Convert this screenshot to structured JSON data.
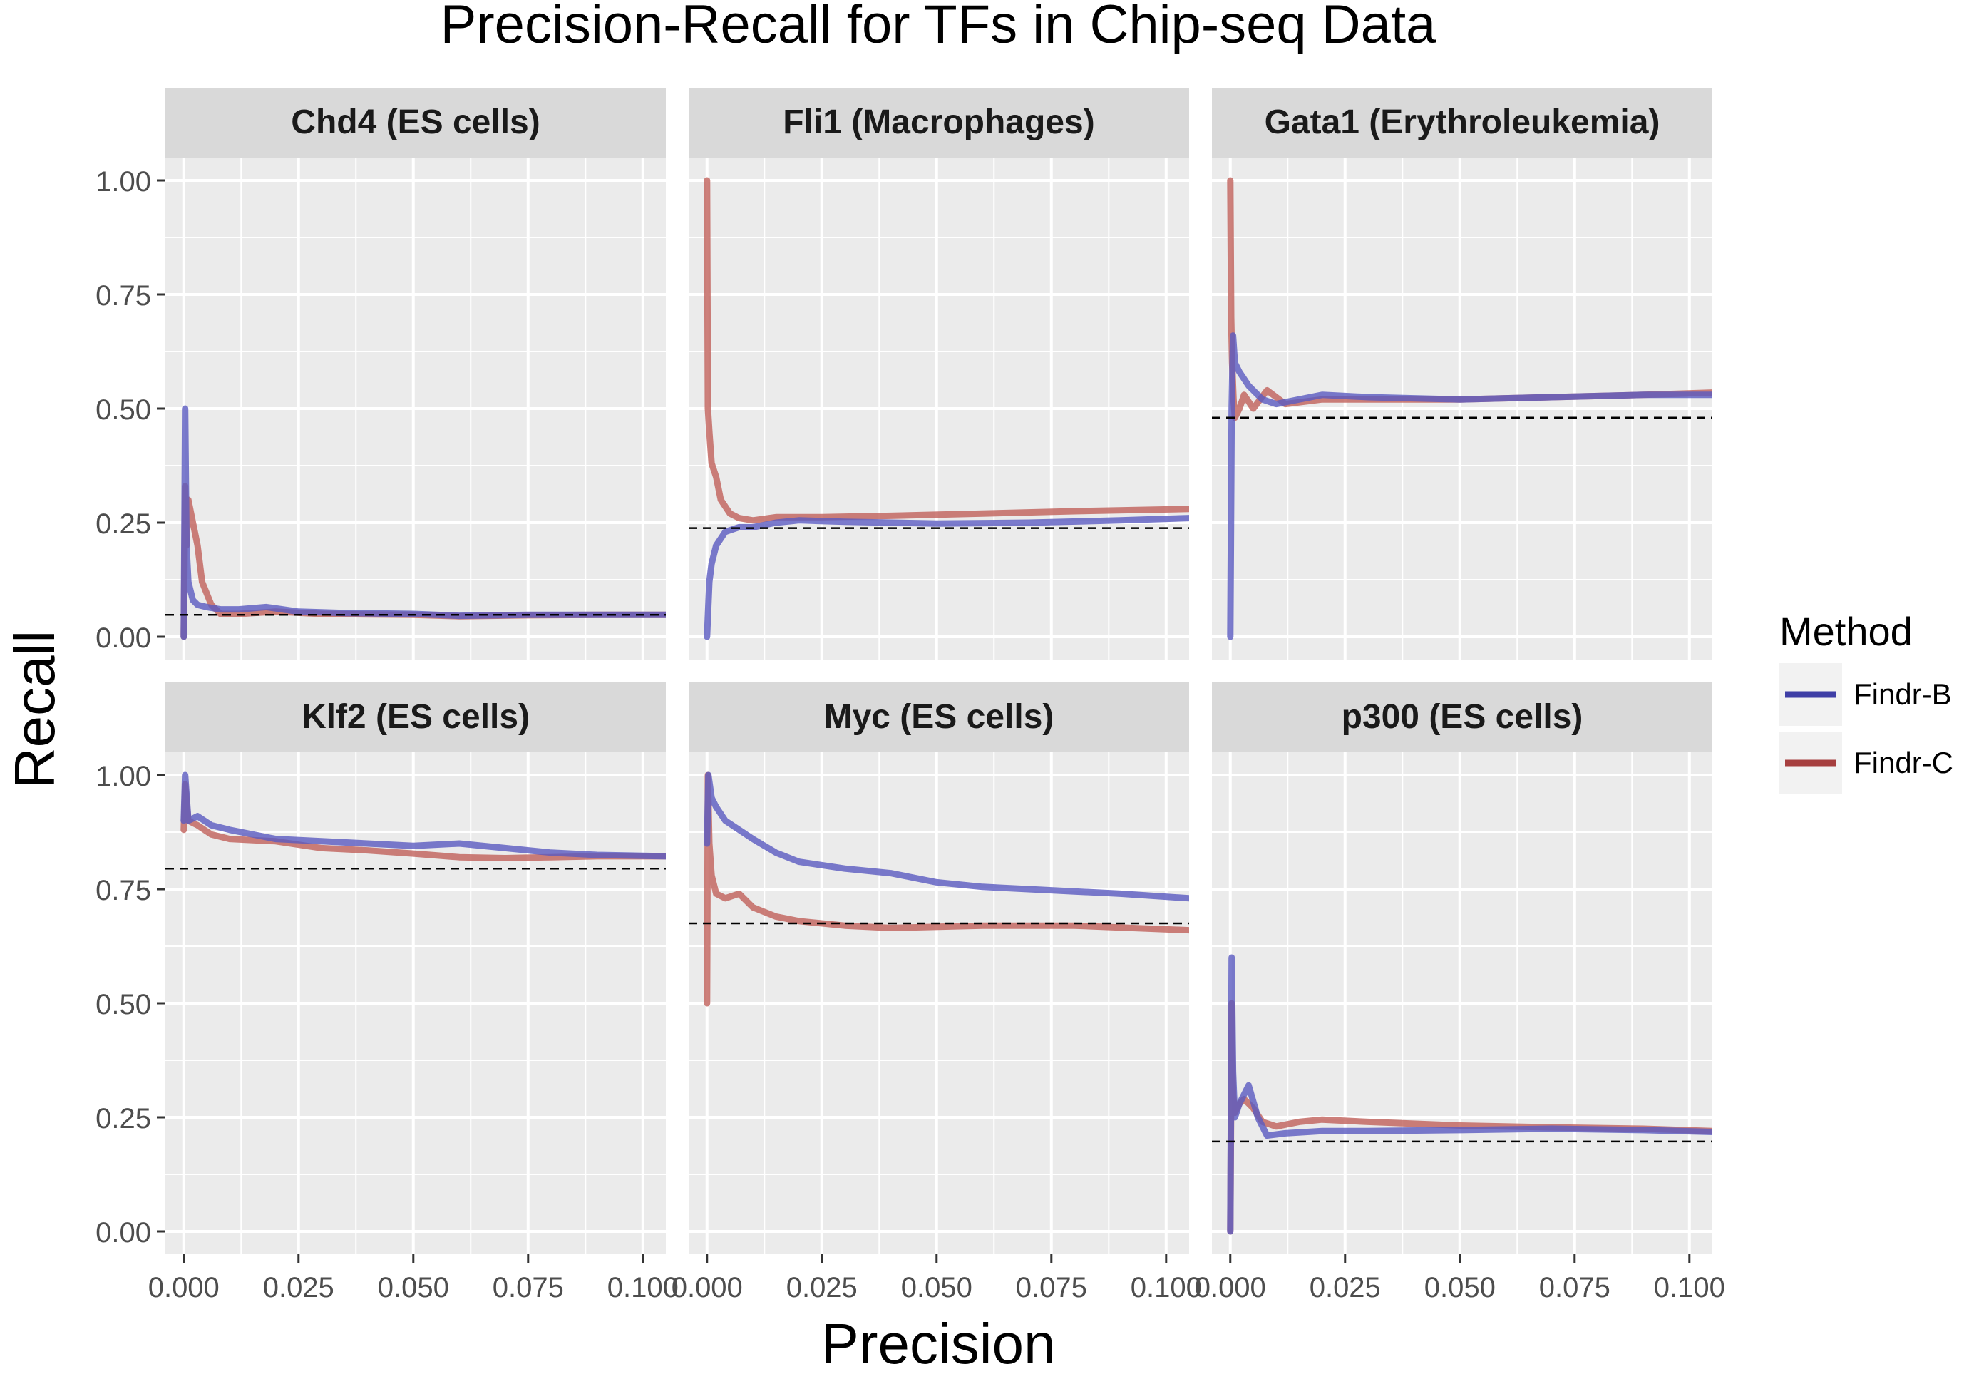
{
  "chart_data": {
    "type": "line",
    "title": "Precision-Recall for TFs in Chip-seq Data",
    "xlabel": "Precision",
    "ylabel": "Recall",
    "xlim": [
      -0.004,
      0.105
    ],
    "ylim": [
      -0.05,
      1.05
    ],
    "xticks": [
      0.0,
      0.025,
      0.05,
      0.075,
      0.1
    ],
    "xtick_labels": [
      "0.000",
      "0.025",
      "0.050",
      "0.075",
      "0.100"
    ],
    "yticks": [
      0.0,
      0.25,
      0.5,
      0.75,
      1.0
    ],
    "ytick_labels": [
      "0.00",
      "0.25",
      "0.50",
      "0.75",
      "1.00"
    ],
    "legend": {
      "title": "Method",
      "position": "right",
      "entries": [
        {
          "name": "Findr-B",
          "color": "#3f3fa6"
        },
        {
          "name": "Findr-C",
          "color": "#a63f3f"
        }
      ]
    },
    "colors": {
      "findr_b": "#5a5ac0",
      "findr_c": "#c0605a",
      "panel_bg": "#ebebeb",
      "strip_bg": "#d9d9d9",
      "grid": "#ffffff",
      "baseline": "#000000"
    },
    "panels": [
      {
        "title": "Chd4 (ES cells)",
        "baseline": 0.048,
        "series": [
          {
            "name": "Findr-B",
            "x": [
              0.0,
              0.0003,
              0.0006,
              0.001,
              0.002,
              0.003,
              0.005,
              0.008,
              0.012,
              0.018,
              0.025,
              0.035,
              0.05,
              0.06,
              0.075,
              0.09,
              0.105
            ],
            "y": [
              0.0,
              0.5,
              0.2,
              0.12,
              0.08,
              0.07,
              0.065,
              0.06,
              0.06,
              0.065,
              0.055,
              0.052,
              0.05,
              0.046,
              0.048,
              0.048,
              0.048
            ]
          },
          {
            "name": "Findr-C",
            "x": [
              0.0,
              0.0003,
              0.0006,
              0.001,
              0.002,
              0.003,
              0.004,
              0.006,
              0.008,
              0.012,
              0.02,
              0.03,
              0.05,
              0.06,
              0.075,
              0.09,
              0.105
            ],
            "y": [
              0.0,
              0.33,
              0.2,
              0.3,
              0.25,
              0.2,
              0.12,
              0.07,
              0.05,
              0.05,
              0.055,
              0.05,
              0.048,
              0.045,
              0.047,
              0.048,
              0.048
            ]
          }
        ]
      },
      {
        "title": "Fli1 (Macrophages)",
        "baseline": 0.238,
        "series": [
          {
            "name": "Findr-B",
            "x": [
              0.0,
              0.0005,
              0.001,
              0.002,
              0.004,
              0.007,
              0.01,
              0.015,
              0.02,
              0.03,
              0.05,
              0.07,
              0.09,
              0.105
            ],
            "y": [
              0.0,
              0.12,
              0.16,
              0.2,
              0.23,
              0.24,
              0.24,
              0.25,
              0.255,
              0.252,
              0.248,
              0.25,
              0.255,
              0.26
            ]
          },
          {
            "name": "Findr-C",
            "x": [
              0.0,
              0.0002,
              0.0005,
              0.001,
              0.002,
              0.003,
              0.005,
              0.007,
              0.01,
              0.015,
              0.025,
              0.04,
              0.06,
              0.08,
              0.105
            ],
            "y": [
              1.0,
              0.5,
              0.45,
              0.38,
              0.35,
              0.3,
              0.27,
              0.26,
              0.255,
              0.262,
              0.262,
              0.265,
              0.27,
              0.275,
              0.28
            ]
          }
        ]
      },
      {
        "title": "Gata1 (Erythroleukemia)",
        "baseline": 0.48,
        "series": [
          {
            "name": "Findr-B",
            "x": [
              0.0,
              0.0003,
              0.0006,
              0.001,
              0.002,
              0.004,
              0.007,
              0.01,
              0.015,
              0.02,
              0.03,
              0.05,
              0.07,
              0.09,
              0.105
            ],
            "y": [
              0.0,
              0.5,
              0.66,
              0.6,
              0.58,
              0.55,
              0.52,
              0.51,
              0.52,
              0.53,
              0.525,
              0.52,
              0.525,
              0.53,
              0.53
            ]
          },
          {
            "name": "Findr-C",
            "x": [
              0.0,
              0.0002,
              0.0004,
              0.0007,
              0.001,
              0.002,
              0.003,
              0.005,
              0.008,
              0.012,
              0.02,
              0.03,
              0.05,
              0.07,
              0.09,
              0.105
            ],
            "y": [
              1.0,
              0.7,
              0.6,
              0.52,
              0.48,
              0.5,
              0.53,
              0.5,
              0.54,
              0.51,
              0.52,
              0.52,
              0.52,
              0.525,
              0.53,
              0.535
            ]
          }
        ]
      },
      {
        "title": "Klf2 (ES cells)",
        "baseline": 0.795,
        "series": [
          {
            "name": "Findr-B",
            "x": [
              0.0,
              0.0003,
              0.001,
              0.003,
              0.006,
              0.01,
              0.02,
              0.03,
              0.04,
              0.05,
              0.06,
              0.07,
              0.08,
              0.09,
              0.105
            ],
            "y": [
              0.9,
              1.0,
              0.9,
              0.91,
              0.89,
              0.88,
              0.86,
              0.855,
              0.85,
              0.845,
              0.85,
              0.84,
              0.83,
              0.825,
              0.822
            ]
          },
          {
            "name": "Findr-C",
            "x": [
              0.0,
              0.0003,
              0.001,
              0.003,
              0.006,
              0.01,
              0.02,
              0.03,
              0.04,
              0.05,
              0.06,
              0.07,
              0.08,
              0.09,
              0.105
            ],
            "y": [
              0.88,
              0.98,
              0.9,
              0.89,
              0.87,
              0.86,
              0.855,
              0.84,
              0.835,
              0.828,
              0.82,
              0.818,
              0.82,
              0.822,
              0.822
            ]
          }
        ]
      },
      {
        "title": "Myc (ES cells)",
        "baseline": 0.675,
        "series": [
          {
            "name": "Findr-B",
            "x": [
              0.0,
              0.0003,
              0.001,
              0.002,
              0.004,
              0.007,
              0.01,
              0.015,
              0.02,
              0.03,
              0.04,
              0.05,
              0.06,
              0.07,
              0.08,
              0.09,
              0.105
            ],
            "y": [
              0.85,
              1.0,
              0.95,
              0.93,
              0.9,
              0.88,
              0.86,
              0.83,
              0.81,
              0.795,
              0.785,
              0.765,
              0.755,
              0.75,
              0.745,
              0.74,
              0.73
            ]
          },
          {
            "name": "Findr-C",
            "x": [
              0.0,
              0.0002,
              0.0005,
              0.001,
              0.002,
              0.004,
              0.007,
              0.01,
              0.015,
              0.02,
              0.03,
              0.04,
              0.06,
              0.08,
              0.105
            ],
            "y": [
              0.5,
              1.0,
              0.85,
              0.78,
              0.74,
              0.73,
              0.74,
              0.71,
              0.69,
              0.68,
              0.67,
              0.665,
              0.67,
              0.67,
              0.66
            ]
          }
        ]
      },
      {
        "title": "p300 (ES cells)",
        "baseline": 0.197,
        "series": [
          {
            "name": "Findr-B",
            "x": [
              0.0,
              0.0003,
              0.0006,
              0.001,
              0.002,
              0.003,
              0.004,
              0.006,
              0.008,
              0.012,
              0.02,
              0.03,
              0.05,
              0.07,
              0.09,
              0.105
            ],
            "y": [
              0.0,
              0.6,
              0.35,
              0.25,
              0.28,
              0.3,
              0.32,
              0.25,
              0.21,
              0.215,
              0.22,
              0.22,
              0.222,
              0.225,
              0.222,
              0.218
            ]
          },
          {
            "name": "Findr-C",
            "x": [
              0.0,
              0.0003,
              0.0006,
              0.001,
              0.002,
              0.003,
              0.005,
              0.007,
              0.01,
              0.015,
              0.02,
              0.03,
              0.05,
              0.07,
              0.09,
              0.105
            ],
            "y": [
              0.0,
              0.5,
              0.3,
              0.26,
              0.28,
              0.29,
              0.27,
              0.24,
              0.23,
              0.24,
              0.245,
              0.24,
              0.232,
              0.228,
              0.225,
              0.22
            ]
          }
        ]
      }
    ]
  }
}
